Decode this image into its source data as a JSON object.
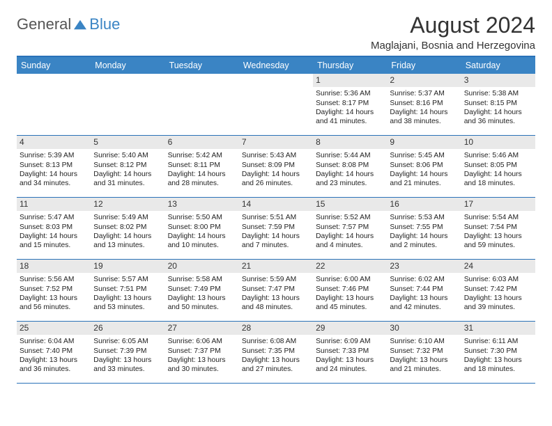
{
  "brand": {
    "part1": "General",
    "part2": "Blue"
  },
  "title": "August 2024",
  "location": "Maglajani, Bosnia and Herzegovina",
  "colors": {
    "header_bg": "#3a84c4",
    "border": "#2971b8",
    "daynum_bg": "#e9e9e9",
    "text": "#222222",
    "page_bg": "#ffffff"
  },
  "day_names": [
    "Sunday",
    "Monday",
    "Tuesday",
    "Wednesday",
    "Thursday",
    "Friday",
    "Saturday"
  ],
  "weeks": [
    [
      {
        "n": "",
        "sr": "",
        "ss": "",
        "dl": ""
      },
      {
        "n": "",
        "sr": "",
        "ss": "",
        "dl": ""
      },
      {
        "n": "",
        "sr": "",
        "ss": "",
        "dl": ""
      },
      {
        "n": "",
        "sr": "",
        "ss": "",
        "dl": ""
      },
      {
        "n": "1",
        "sr": "Sunrise: 5:36 AM",
        "ss": "Sunset: 8:17 PM",
        "dl": "Daylight: 14 hours and 41 minutes."
      },
      {
        "n": "2",
        "sr": "Sunrise: 5:37 AM",
        "ss": "Sunset: 8:16 PM",
        "dl": "Daylight: 14 hours and 38 minutes."
      },
      {
        "n": "3",
        "sr": "Sunrise: 5:38 AM",
        "ss": "Sunset: 8:15 PM",
        "dl": "Daylight: 14 hours and 36 minutes."
      }
    ],
    [
      {
        "n": "4",
        "sr": "Sunrise: 5:39 AM",
        "ss": "Sunset: 8:13 PM",
        "dl": "Daylight: 14 hours and 34 minutes."
      },
      {
        "n": "5",
        "sr": "Sunrise: 5:40 AM",
        "ss": "Sunset: 8:12 PM",
        "dl": "Daylight: 14 hours and 31 minutes."
      },
      {
        "n": "6",
        "sr": "Sunrise: 5:42 AM",
        "ss": "Sunset: 8:11 PM",
        "dl": "Daylight: 14 hours and 28 minutes."
      },
      {
        "n": "7",
        "sr": "Sunrise: 5:43 AM",
        "ss": "Sunset: 8:09 PM",
        "dl": "Daylight: 14 hours and 26 minutes."
      },
      {
        "n": "8",
        "sr": "Sunrise: 5:44 AM",
        "ss": "Sunset: 8:08 PM",
        "dl": "Daylight: 14 hours and 23 minutes."
      },
      {
        "n": "9",
        "sr": "Sunrise: 5:45 AM",
        "ss": "Sunset: 8:06 PM",
        "dl": "Daylight: 14 hours and 21 minutes."
      },
      {
        "n": "10",
        "sr": "Sunrise: 5:46 AM",
        "ss": "Sunset: 8:05 PM",
        "dl": "Daylight: 14 hours and 18 minutes."
      }
    ],
    [
      {
        "n": "11",
        "sr": "Sunrise: 5:47 AM",
        "ss": "Sunset: 8:03 PM",
        "dl": "Daylight: 14 hours and 15 minutes."
      },
      {
        "n": "12",
        "sr": "Sunrise: 5:49 AM",
        "ss": "Sunset: 8:02 PM",
        "dl": "Daylight: 14 hours and 13 minutes."
      },
      {
        "n": "13",
        "sr": "Sunrise: 5:50 AM",
        "ss": "Sunset: 8:00 PM",
        "dl": "Daylight: 14 hours and 10 minutes."
      },
      {
        "n": "14",
        "sr": "Sunrise: 5:51 AM",
        "ss": "Sunset: 7:59 PM",
        "dl": "Daylight: 14 hours and 7 minutes."
      },
      {
        "n": "15",
        "sr": "Sunrise: 5:52 AM",
        "ss": "Sunset: 7:57 PM",
        "dl": "Daylight: 14 hours and 4 minutes."
      },
      {
        "n": "16",
        "sr": "Sunrise: 5:53 AM",
        "ss": "Sunset: 7:55 PM",
        "dl": "Daylight: 14 hours and 2 minutes."
      },
      {
        "n": "17",
        "sr": "Sunrise: 5:54 AM",
        "ss": "Sunset: 7:54 PM",
        "dl": "Daylight: 13 hours and 59 minutes."
      }
    ],
    [
      {
        "n": "18",
        "sr": "Sunrise: 5:56 AM",
        "ss": "Sunset: 7:52 PM",
        "dl": "Daylight: 13 hours and 56 minutes."
      },
      {
        "n": "19",
        "sr": "Sunrise: 5:57 AM",
        "ss": "Sunset: 7:51 PM",
        "dl": "Daylight: 13 hours and 53 minutes."
      },
      {
        "n": "20",
        "sr": "Sunrise: 5:58 AM",
        "ss": "Sunset: 7:49 PM",
        "dl": "Daylight: 13 hours and 50 minutes."
      },
      {
        "n": "21",
        "sr": "Sunrise: 5:59 AM",
        "ss": "Sunset: 7:47 PM",
        "dl": "Daylight: 13 hours and 48 minutes."
      },
      {
        "n": "22",
        "sr": "Sunrise: 6:00 AM",
        "ss": "Sunset: 7:46 PM",
        "dl": "Daylight: 13 hours and 45 minutes."
      },
      {
        "n": "23",
        "sr": "Sunrise: 6:02 AM",
        "ss": "Sunset: 7:44 PM",
        "dl": "Daylight: 13 hours and 42 minutes."
      },
      {
        "n": "24",
        "sr": "Sunrise: 6:03 AM",
        "ss": "Sunset: 7:42 PM",
        "dl": "Daylight: 13 hours and 39 minutes."
      }
    ],
    [
      {
        "n": "25",
        "sr": "Sunrise: 6:04 AM",
        "ss": "Sunset: 7:40 PM",
        "dl": "Daylight: 13 hours and 36 minutes."
      },
      {
        "n": "26",
        "sr": "Sunrise: 6:05 AM",
        "ss": "Sunset: 7:39 PM",
        "dl": "Daylight: 13 hours and 33 minutes."
      },
      {
        "n": "27",
        "sr": "Sunrise: 6:06 AM",
        "ss": "Sunset: 7:37 PM",
        "dl": "Daylight: 13 hours and 30 minutes."
      },
      {
        "n": "28",
        "sr": "Sunrise: 6:08 AM",
        "ss": "Sunset: 7:35 PM",
        "dl": "Daylight: 13 hours and 27 minutes."
      },
      {
        "n": "29",
        "sr": "Sunrise: 6:09 AM",
        "ss": "Sunset: 7:33 PM",
        "dl": "Daylight: 13 hours and 24 minutes."
      },
      {
        "n": "30",
        "sr": "Sunrise: 6:10 AM",
        "ss": "Sunset: 7:32 PM",
        "dl": "Daylight: 13 hours and 21 minutes."
      },
      {
        "n": "31",
        "sr": "Sunrise: 6:11 AM",
        "ss": "Sunset: 7:30 PM",
        "dl": "Daylight: 13 hours and 18 minutes."
      }
    ]
  ]
}
